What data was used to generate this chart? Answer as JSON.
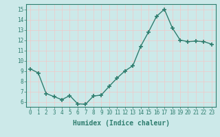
{
  "x": [
    0,
    1,
    2,
    3,
    4,
    5,
    6,
    7,
    8,
    9,
    10,
    11,
    12,
    13,
    14,
    15,
    16,
    17,
    18,
    19,
    20,
    21,
    22,
    23
  ],
  "y": [
    9.2,
    8.8,
    6.8,
    6.5,
    6.2,
    6.6,
    5.8,
    5.75,
    6.55,
    6.65,
    7.5,
    8.3,
    9.0,
    9.5,
    11.4,
    12.8,
    14.3,
    15.0,
    13.2,
    12.0,
    11.85,
    11.9,
    11.85,
    11.6
  ],
  "line_color": "#2e7d6e",
  "marker": "+",
  "marker_size": 4,
  "line_width": 1.0,
  "xlabel": "Humidex (Indice chaleur)",
  "ylim": [
    5.5,
    15.5
  ],
  "xlim": [
    -0.5,
    23.5
  ],
  "yticks": [
    6,
    7,
    8,
    9,
    10,
    11,
    12,
    13,
    14,
    15
  ],
  "xticks": [
    0,
    1,
    2,
    3,
    4,
    5,
    6,
    7,
    8,
    9,
    10,
    11,
    12,
    13,
    14,
    15,
    16,
    17,
    18,
    19,
    20,
    21,
    22,
    23
  ],
  "bg_color": "#cce9e9",
  "grid_color": "#f0c8c8",
  "tick_color": "#2e7d6e",
  "label_color": "#2e7d6e",
  "xlabel_fontsize": 7,
  "tick_fontsize": 5.5,
  "fig_width": 3.2,
  "fig_height": 2.0,
  "dpi": 100
}
